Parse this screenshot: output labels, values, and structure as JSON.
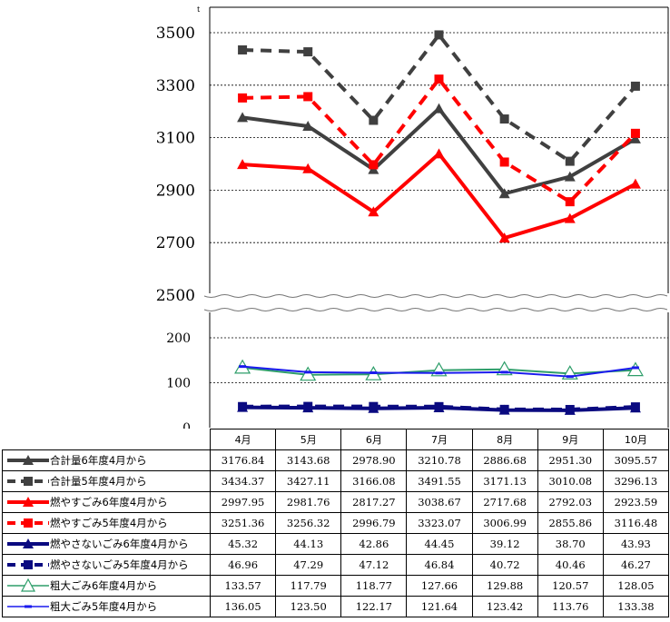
{
  "chart_data": {
    "type": "line",
    "title": "",
    "xlabel": "",
    "ylabel": "",
    "y_unit_mark": "t",
    "categories": [
      "4月",
      "5月",
      "6月",
      "7月",
      "8月",
      "9月",
      "10月"
    ],
    "upper_axis": {
      "ylim": [
        2500,
        3500
      ],
      "ticks": [
        "3500",
        "3300",
        "3100",
        "2900",
        "2700",
        "2500"
      ]
    },
    "lower_axis": {
      "ylim": [
        0,
        200
      ],
      "ticks": [
        "200",
        "100",
        "0"
      ]
    },
    "series": [
      {
        "name": "合計量6年度4月から",
        "axis": "upper",
        "color": "#404040",
        "dash": false,
        "marker": "triangle-filled",
        "values": [
          "3176.84",
          "3143.68",
          "2978.90",
          "3210.78",
          "2886.68",
          "2951.30",
          "3095.57"
        ]
      },
      {
        "name": "合計量5年度4月から",
        "axis": "upper",
        "color": "#404040",
        "dash": true,
        "marker": "square",
        "values": [
          "3434.37",
          "3427.11",
          "3166.08",
          "3491.55",
          "3171.13",
          "3010.08",
          "3296.13"
        ]
      },
      {
        "name": "燃やすごみ6年度4月から",
        "axis": "upper",
        "color": "#ff0000",
        "dash": false,
        "marker": "triangle-filled",
        "values": [
          "2997.95",
          "2981.76",
          "2817.27",
          "3038.67",
          "2717.68",
          "2792.03",
          "2923.59"
        ]
      },
      {
        "name": "燃やすごみ5年度4月から",
        "axis": "upper",
        "color": "#ff0000",
        "dash": true,
        "marker": "square",
        "values": [
          "3251.36",
          "3256.32",
          "2996.79",
          "3323.07",
          "3006.99",
          "2855.86",
          "3116.48"
        ]
      },
      {
        "name": "燃やさないごみ6年度4月から",
        "axis": "lower",
        "color": "#0a0a80",
        "dash": false,
        "marker": "triangle-filled",
        "values": [
          "45.32",
          "44.13",
          "42.86",
          "44.45",
          "39.12",
          "38.70",
          "43.93"
        ]
      },
      {
        "name": "燃やさないごみ5年度4月から",
        "axis": "lower",
        "color": "#0a0a80",
        "dash": true,
        "marker": "square",
        "values": [
          "46.96",
          "47.29",
          "47.12",
          "46.84",
          "40.72",
          "40.46",
          "46.27"
        ]
      },
      {
        "name": "粗大ごみ6年度4月から",
        "axis": "lower",
        "color": "#2e9e6a",
        "dash": false,
        "marker": "triangle-open",
        "values": [
          "133.57",
          "117.79",
          "118.77",
          "127.66",
          "129.88",
          "120.57",
          "128.05"
        ]
      },
      {
        "name": "粗大ごみ5年度4月から",
        "axis": "lower",
        "color": "#1a1aee",
        "dash": false,
        "marker": "dash",
        "values": [
          "136.05",
          "123.50",
          "122.17",
          "121.64",
          "123.42",
          "113.76",
          "133.38"
        ]
      }
    ]
  }
}
